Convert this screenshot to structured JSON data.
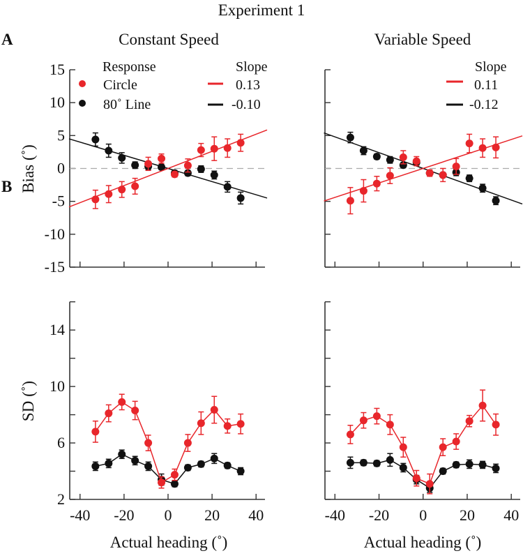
{
  "title": "Experiment 1",
  "panel_labels": [
    "A",
    "B"
  ],
  "column_titles": [
    "Constant Speed",
    "Variable Speed"
  ],
  "colors": {
    "circle": "#e8262b",
    "line80": "#111111",
    "zero_line": "#aaaaaa"
  },
  "legend": {
    "response_title": "Response",
    "response_items": [
      {
        "label": "Circle",
        "color": "#e8262b"
      },
      {
        "label": "80˚ Line",
        "color": "#111111"
      }
    ],
    "slope_title": "Slope",
    "slopes_left": [
      "0.13",
      "-0.10"
    ],
    "slopes_right": [
      "0.11",
      "-0.12"
    ]
  },
  "chart_data": [
    {
      "type": "scatter",
      "panel": "A",
      "column": "Constant Speed",
      "ylabel": "Bias (˚)",
      "xlabel": "",
      "xlim": [
        -45,
        45
      ],
      "ylim": [
        -15,
        15
      ],
      "xticks": [
        -40,
        -20,
        0,
        20,
        40
      ],
      "yticks": [
        15,
        10,
        5,
        0,
        -5,
        -10,
        -15
      ],
      "x": [
        -33,
        -27,
        -21,
        -15,
        -9,
        -3,
        3,
        9,
        15,
        21,
        27,
        33
      ],
      "series": [
        {
          "name": "Circle",
          "color": "#e8262b",
          "slope": 0.13,
          "values": [
            -4.7,
            -3.9,
            -3.2,
            -2.7,
            0.7,
            1.5,
            -0.9,
            0.45,
            2.8,
            3.0,
            3.1,
            3.9
          ],
          "errors": [
            1.4,
            1.3,
            1.2,
            1.2,
            1.0,
            0.7,
            0.4,
            1.0,
            1.0,
            1.8,
            1.4,
            1.3
          ]
        },
        {
          "name": "80˚ Line",
          "color": "#111111",
          "slope": -0.1,
          "values": [
            4.4,
            2.7,
            1.6,
            0.5,
            0.3,
            0.2,
            -0.7,
            -0.7,
            -0.1,
            -1.0,
            -2.8,
            -4.5
          ],
          "errors": [
            1.0,
            1.0,
            0.8,
            0.5,
            0.5,
            0.4,
            0.4,
            0.4,
            0.5,
            0.6,
            0.8,
            0.9
          ]
        }
      ]
    },
    {
      "type": "scatter",
      "panel": "A",
      "column": "Variable Speed",
      "ylabel": "",
      "xlabel": "",
      "xlim": [
        -45,
        45
      ],
      "ylim": [
        -15,
        15
      ],
      "xticks": [
        -40,
        -20,
        0,
        20,
        40
      ],
      "yticks": [
        15,
        10,
        5,
        0,
        -5,
        -10,
        -15
      ],
      "x": [
        -33,
        -27,
        -21,
        -15,
        -9,
        -3,
        3,
        9,
        15,
        21,
        27,
        33
      ],
      "series": [
        {
          "name": "Circle",
          "color": "#e8262b",
          "slope": 0.11,
          "values": [
            -4.9,
            -3.4,
            -2.3,
            -1.1,
            1.7,
            1.1,
            -0.7,
            -1.0,
            0.3,
            3.8,
            3.1,
            3.2
          ],
          "errors": [
            2.0,
            1.7,
            1.1,
            1.2,
            1.0,
            0.7,
            0.5,
            1.0,
            1.2,
            1.4,
            1.4,
            1.6
          ]
        },
        {
          "name": "80˚ Line",
          "color": "#111111",
          "slope": -0.12,
          "values": [
            4.7,
            2.7,
            1.8,
            1.3,
            0.5,
            0.9,
            -0.7,
            -1.0,
            -0.6,
            -1.5,
            -3.0,
            -4.9
          ],
          "errors": [
            0.8,
            0.6,
            0.4,
            0.5,
            0.4,
            0.4,
            0.3,
            0.3,
            0.5,
            0.5,
            0.6,
            0.6
          ]
        }
      ]
    },
    {
      "type": "line",
      "panel": "B",
      "column": "Constant Speed",
      "ylabel": "SD (˚)",
      "xlabel": "Actual heading (˚)",
      "xlim": [
        -45,
        45
      ],
      "ylim": [
        2,
        16
      ],
      "xticks": [
        -40,
        -20,
        0,
        20,
        40
      ],
      "yticks": [
        2,
        6,
        10,
        14
      ],
      "yticks_minor": [
        4,
        8,
        12,
        16
      ],
      "x": [
        -33,
        -27,
        -21,
        -15,
        -9,
        -3,
        3,
        9,
        15,
        21,
        27,
        33
      ],
      "series": [
        {
          "name": "Circle",
          "color": "#e8262b",
          "values": [
            6.8,
            8.1,
            8.9,
            8.3,
            6.0,
            3.2,
            3.75,
            6.0,
            7.4,
            8.35,
            7.2,
            7.35
          ],
          "errors": [
            0.75,
            0.6,
            0.55,
            0.65,
            0.55,
            0.4,
            0.4,
            0.6,
            0.8,
            0.95,
            0.5,
            0.7
          ]
        },
        {
          "name": "80˚ Line",
          "color": "#111111",
          "values": [
            4.35,
            4.55,
            5.2,
            4.75,
            4.35,
            3.4,
            3.1,
            4.25,
            4.5,
            4.9,
            4.4,
            4.0
          ],
          "errors": [
            0.3,
            0.3,
            0.3,
            0.3,
            0.3,
            0.4,
            0.2,
            0.2,
            0.2,
            0.35,
            0.2,
            0.25
          ]
        }
      ]
    },
    {
      "type": "line",
      "panel": "B",
      "column": "Variable Speed",
      "ylabel": "",
      "xlabel": "Actual heading (˚)",
      "xlim": [
        -45,
        45
      ],
      "ylim": [
        2,
        16
      ],
      "xticks": [
        -40,
        -20,
        0,
        20,
        40
      ],
      "yticks": [
        2,
        6,
        10,
        14
      ],
      "yticks_minor": [
        4,
        8,
        12,
        16
      ],
      "x": [
        -33,
        -27,
        -21,
        -15,
        -9,
        -3,
        3,
        9,
        15,
        21,
        27,
        33
      ],
      "series": [
        {
          "name": "Circle",
          "color": "#e8262b",
          "values": [
            6.6,
            7.6,
            7.9,
            7.3,
            5.7,
            3.5,
            3.1,
            5.7,
            6.1,
            7.55,
            8.65,
            7.3
          ],
          "errors": [
            0.65,
            0.55,
            0.55,
            0.7,
            0.7,
            0.55,
            0.7,
            0.6,
            0.55,
            0.4,
            1.1,
            0.75
          ]
        },
        {
          "name": "80˚ Line",
          "color": "#111111",
          "values": [
            4.6,
            4.6,
            4.55,
            4.8,
            4.25,
            3.4,
            2.8,
            4.0,
            4.45,
            4.5,
            4.45,
            4.2
          ],
          "errors": [
            0.4,
            0.2,
            0.2,
            0.45,
            0.3,
            0.3,
            0.3,
            0.2,
            0.2,
            0.3,
            0.25,
            0.3
          ]
        }
      ]
    }
  ]
}
